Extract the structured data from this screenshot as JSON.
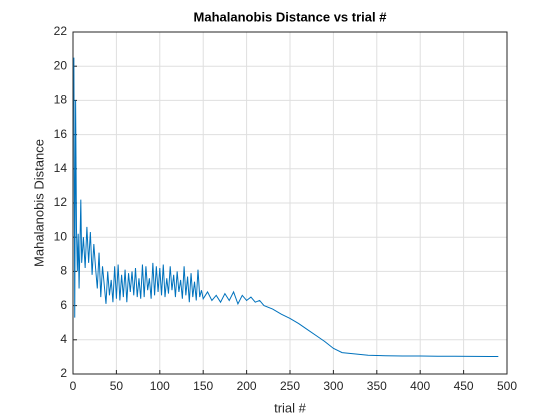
{
  "chart_data": {
    "type": "line",
    "title": "Mahalanobis Distance vs trial #",
    "xlabel": "trial #",
    "ylabel": "Mahalanobis Distance",
    "x": [
      1,
      2,
      3,
      4,
      5,
      6,
      7,
      8,
      9,
      10,
      12,
      14,
      16,
      18,
      20,
      22,
      24,
      26,
      28,
      30,
      32,
      34,
      36,
      38,
      40,
      42,
      44,
      46,
      48,
      50,
      52,
      54,
      56,
      58,
      60,
      62,
      64,
      66,
      68,
      70,
      72,
      74,
      76,
      78,
      80,
      82,
      84,
      86,
      88,
      90,
      92,
      94,
      96,
      98,
      100,
      102,
      104,
      106,
      108,
      110,
      112,
      114,
      116,
      118,
      120,
      122,
      124,
      126,
      128,
      130,
      132,
      134,
      136,
      138,
      140,
      142,
      144,
      146,
      148,
      150,
      155,
      160,
      165,
      170,
      175,
      180,
      185,
      190,
      195,
      200,
      205,
      210,
      215,
      220,
      230,
      240,
      250,
      260,
      270,
      280,
      290,
      300,
      310,
      320,
      330,
      340,
      350,
      360,
      380,
      400,
      420,
      440,
      460,
      480,
      490
    ],
    "series": [
      {
        "name": "Mahalanobis Distance",
        "color": "#0072bd",
        "values": [
          20.5,
          5.3,
          18,
          10.5,
          8,
          10.2,
          7,
          9.5,
          12.2,
          8.5,
          10,
          8.2,
          10.6,
          8.5,
          10.3,
          7.8,
          9.6,
          8.2,
          7,
          9.1,
          6.5,
          8.3,
          7.2,
          6.1,
          8,
          6.6,
          7.5,
          6.2,
          8.3,
          6.4,
          8.4,
          6.3,
          7.8,
          6.5,
          8.1,
          6.2,
          7.9,
          6.8,
          8,
          6.6,
          8.2,
          6.5,
          7.6,
          6.4,
          8.4,
          6.5,
          8.3,
          6.9,
          7.6,
          6.4,
          8.5,
          6.6,
          8.3,
          6.8,
          8.2,
          6.6,
          8.4,
          6.5,
          7.6,
          6.7,
          8.3,
          6.9,
          7.8,
          6.5,
          8,
          6.8,
          7.5,
          6.4,
          8.3,
          6.6,
          7.7,
          6.2,
          7.9,
          6.5,
          7.4,
          6.3,
          8.1,
          6.5,
          6.9,
          6.4,
          6.8,
          6.3,
          6.6,
          6.2,
          6.7,
          6.3,
          6.8,
          6.1,
          6.6,
          6.3,
          6.5,
          6.2,
          6.3,
          6.0,
          5.8,
          5.5,
          5.25,
          4.95,
          4.6,
          4.25,
          3.9,
          3.5,
          3.25,
          3.2,
          3.15,
          3.1,
          3.08,
          3.07,
          3.05,
          3.05,
          3.04,
          3.04,
          3.03,
          3.02,
          3.02
        ]
      }
    ],
    "xlim": [
      0,
      500
    ],
    "xticks": [
      0,
      50,
      100,
      150,
      200,
      250,
      300,
      350,
      400,
      450,
      500
    ],
    "ylim": [
      2,
      22
    ],
    "yticks": [
      2,
      4,
      6,
      8,
      10,
      12,
      14,
      16,
      18,
      20,
      22
    ],
    "grid": true
  }
}
